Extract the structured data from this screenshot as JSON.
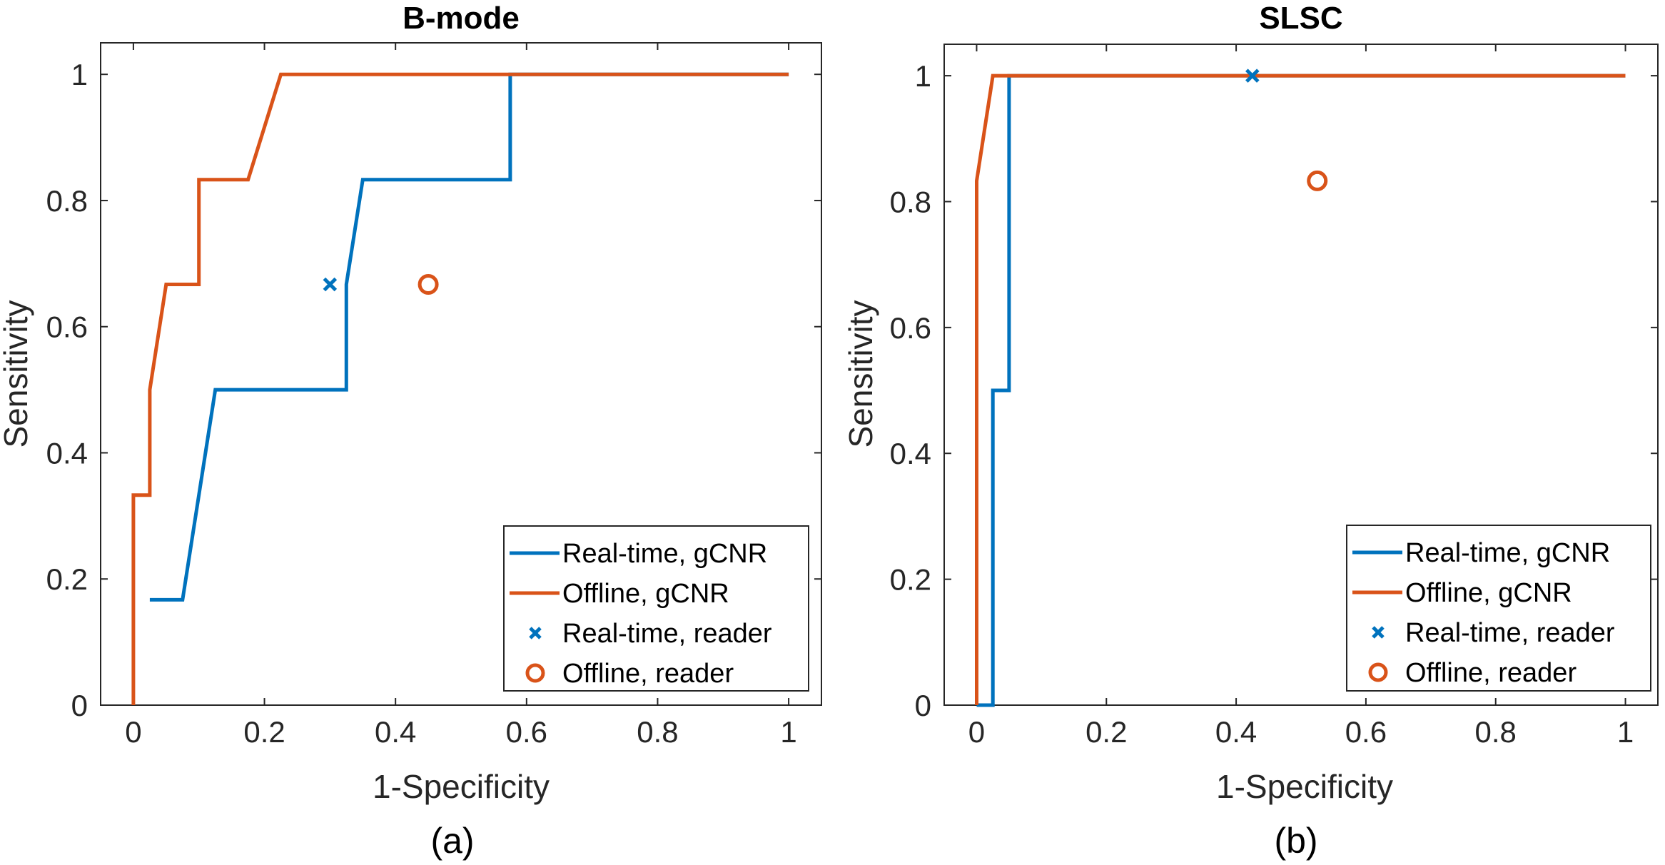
{
  "figure": {
    "captions": [
      "(a)",
      "(b)"
    ]
  },
  "chart_data": [
    {
      "type": "line",
      "panel": "a",
      "title": "B-mode",
      "xlabel": "1-Specificity",
      "ylabel": "Sensitivity",
      "caption": "(a)",
      "xlim": [
        -0.05,
        1.05
      ],
      "ylim": [
        0,
        1.05
      ],
      "xticks": [
        0,
        0.2,
        0.4,
        0.6,
        0.8,
        1
      ],
      "xtick_labels": [
        "0",
        "0.2",
        "0.4",
        "0.6",
        "0.8",
        "1"
      ],
      "yticks": [
        0,
        0.2,
        0.4,
        0.6,
        0.8,
        1
      ],
      "ytick_labels": [
        "0",
        "0.2",
        "0.4",
        "0.6",
        "0.8",
        "1"
      ],
      "grid": false,
      "legend_position": "southeast",
      "series": [
        {
          "name": "Real-time, gCNR",
          "kind": "line",
          "color": "#0072BD",
          "x": [
            0.025,
            0.075,
            0.125,
            0.325,
            0.325,
            0.35,
            0.575,
            0.575,
            1.0
          ],
          "y": [
            0.167,
            0.167,
            0.5,
            0.5,
            0.667,
            0.833,
            0.833,
            1.0,
            1.0
          ]
        },
        {
          "name": "Offline, gCNR",
          "kind": "line",
          "color": "#D95319",
          "x": [
            0,
            0,
            0.025,
            0.025,
            0.05,
            0.1,
            0.1,
            0.175,
            0.225,
            1.0
          ],
          "y": [
            0,
            0.333,
            0.333,
            0.5,
            0.667,
            0.667,
            0.833,
            0.833,
            1.0,
            1.0
          ]
        },
        {
          "name": "Real-time, reader",
          "kind": "marker",
          "marker": "x",
          "color": "#0072BD",
          "x": [
            0.3
          ],
          "y": [
            0.667
          ]
        },
        {
          "name": "Offline, reader",
          "kind": "marker",
          "marker": "o",
          "color": "#D95319",
          "x": [
            0.45
          ],
          "y": [
            0.667
          ]
        }
      ]
    },
    {
      "type": "line",
      "panel": "b",
      "title": "SLSC",
      "xlabel": "1-Specificity",
      "ylabel": "Sensitivity",
      "caption": "(b)",
      "xlim": [
        -0.05,
        1.05
      ],
      "ylim": [
        0,
        1.05
      ],
      "xticks": [
        0,
        0.2,
        0.4,
        0.6,
        0.8,
        1
      ],
      "xtick_labels": [
        "0",
        "0.2",
        "0.4",
        "0.6",
        "0.8",
        "1"
      ],
      "yticks": [
        0,
        0.2,
        0.4,
        0.6,
        0.8,
        1
      ],
      "ytick_labels": [
        "0",
        "0.2",
        "0.4",
        "0.6",
        "0.8",
        "1"
      ],
      "grid": false,
      "legend_position": "southeast",
      "series": [
        {
          "name": "Real-time, gCNR",
          "kind": "line",
          "color": "#0072BD",
          "x": [
            0,
            0.025,
            0.025,
            0.05,
            0.05,
            1.0
          ],
          "y": [
            0,
            0,
            0.5,
            0.5,
            1.0,
            1.0
          ]
        },
        {
          "name": "Offline, gCNR",
          "kind": "line",
          "color": "#D95319",
          "x": [
            0,
            0,
            0.025,
            1.0
          ],
          "y": [
            0,
            0.833,
            1.0,
            1.0
          ]
        },
        {
          "name": "Real-time, reader",
          "kind": "marker",
          "marker": "x",
          "color": "#0072BD",
          "x": [
            0.425
          ],
          "y": [
            1.0
          ]
        },
        {
          "name": "Offline, reader",
          "kind": "marker",
          "marker": "o",
          "color": "#D95319",
          "x": [
            0.525
          ],
          "y": [
            0.833
          ]
        }
      ]
    }
  ]
}
